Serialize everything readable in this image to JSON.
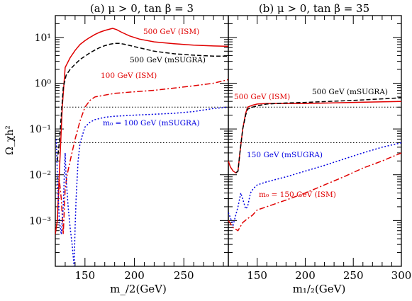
{
  "chart_data": [
    {
      "type": "line",
      "title": "(a) μ > 0, tan β = 3",
      "xlabel": "m_/2(GeV)",
      "ylabel": "Ω_χh²",
      "xlim": [
        120,
        295
      ],
      "ylim": [
        0.0001,
        30
      ],
      "yscale": "log",
      "xticks": [
        150,
        200,
        250
      ],
      "yticks": [
        "10⁻³",
        "10⁻²",
        "10⁻¹",
        "10⁰",
        "10¹"
      ],
      "reference_lines": [
        0.3,
        0.05
      ],
      "series": [
        {
          "name": "500 GeV (ISM)",
          "color": "#e00000",
          "style": "solid",
          "x": [
            120,
            122,
            124,
            127,
            130,
            135,
            140,
            145,
            150,
            155,
            160,
            165,
            170,
            175,
            178,
            182,
            187,
            195,
            205,
            220,
            240,
            260,
            280,
            295
          ],
          "y": [
            0.0005,
            0.001,
            0.01,
            0.3,
            2.2,
            3.6,
            5.2,
            7,
            8.5,
            10,
            11.6,
            13,
            14.2,
            15.2,
            15.8,
            14.8,
            13,
            10.8,
            9.2,
            8,
            7.3,
            6.8,
            6.5,
            6.4
          ]
        },
        {
          "name": "500 GeV (mSUGRA)",
          "color": "#000000",
          "style": "dashed",
          "x": [
            122,
            124,
            126,
            128,
            131,
            135,
            140,
            145,
            150,
            155,
            160,
            165,
            170,
            175,
            180,
            185,
            190,
            200,
            210,
            220,
            240,
            260,
            280,
            295
          ],
          "y": [
            0.02,
            0.05,
            0.2,
            0.8,
            1.5,
            2,
            2.6,
            3.3,
            3.9,
            4.6,
            5.3,
            6,
            6.6,
            7.1,
            7.4,
            7.4,
            7.1,
            6.3,
            5.6,
            5,
            4.4,
            4.1,
            3.9,
            3.9
          ]
        },
        {
          "name": "100 GeV (ISM)",
          "color": "#e00000",
          "style": "dashdot",
          "x": [
            122,
            124,
            126,
            127,
            128,
            129,
            130,
            132,
            135,
            140,
            145,
            150,
            155,
            160,
            170,
            180,
            200,
            220,
            240,
            260,
            280,
            295
          ],
          "y": [
            0.001,
            0.008,
            0.003,
            0.0012,
            0.0005,
            0.0015,
            0.005,
            0.01,
            0.02,
            0.06,
            0.15,
            0.3,
            0.42,
            0.5,
            0.55,
            0.6,
            0.65,
            0.7,
            0.78,
            0.88,
            1.0,
            1.2
          ]
        },
        {
          "name": "m₀ = 100 GeV (mSUGRA)",
          "color": "#0000e0",
          "style": "dotted",
          "x": [
            121,
            122,
            124,
            126,
            128,
            129,
            130,
            131,
            133,
            135,
            137,
            139,
            140,
            141,
            143,
            145,
            150,
            155,
            160,
            170,
            180,
            200,
            220,
            240,
            260,
            280,
            295
          ],
          "y": [
            0.06,
            0.01,
            0.001,
            0.0005,
            0.002,
            0.008,
            0.03,
            0.008,
            0.002,
            0.0007,
            0.0003,
            0.0001,
            0.0007,
            0.003,
            0.02,
            0.05,
            0.11,
            0.14,
            0.16,
            0.18,
            0.19,
            0.2,
            0.21,
            0.22,
            0.24,
            0.28,
            0.3
          ]
        }
      ]
    },
    {
      "type": "line",
      "title": "(b) μ > 0, tan β = 35",
      "xlabel": "m₁/₂(GeV)",
      "ylabel": "",
      "xlim": [
        120,
        300
      ],
      "ylim": [
        0.0001,
        30
      ],
      "yscale": "log",
      "xticks": [
        150,
        200,
        250,
        300
      ],
      "reference_lines": [
        0.3,
        0.05
      ],
      "series": [
        {
          "name": "500 GeV (ISM)",
          "color": "#e00000",
          "style": "solid",
          "x": [
            120,
            122,
            125,
            128,
            130,
            132,
            135,
            138,
            140,
            145,
            150,
            160,
            180,
            200,
            250,
            300
          ],
          "y": [
            0.02,
            0.015,
            0.012,
            0.011,
            0.012,
            0.03,
            0.1,
            0.22,
            0.3,
            0.33,
            0.35,
            0.36,
            0.36,
            0.36,
            0.38,
            0.4
          ]
        },
        {
          "name": "500 GeV (mSUGRA)",
          "color": "#000000",
          "style": "dashed",
          "x": [
            128,
            130,
            132,
            135,
            138,
            140,
            145,
            150,
            160,
            180,
            200,
            250,
            300
          ],
          "y": [
            0.011,
            0.012,
            0.03,
            0.1,
            0.2,
            0.27,
            0.3,
            0.32,
            0.35,
            0.37,
            0.38,
            0.42,
            0.48
          ]
        },
        {
          "name": "150 GeV (mSUGRA)",
          "color": "#0000e0",
          "style": "dotted",
          "x": [
            120,
            125,
            130,
            133,
            136,
            138,
            140,
            143,
            146,
            150,
            160,
            180,
            200,
            220,
            240,
            260,
            280,
            300
          ],
          "y": [
            0.0015,
            0.0008,
            0.002,
            0.004,
            0.0025,
            0.0018,
            0.002,
            0.004,
            0.005,
            0.006,
            0.007,
            0.009,
            0.012,
            0.016,
            0.022,
            0.03,
            0.04,
            0.05
          ]
        },
        {
          "name": "m₀ = 150 GeV (ISM)",
          "color": "#e00000",
          "style": "dashdot",
          "x": [
            120,
            125,
            130,
            135,
            140,
            145,
            150,
            160,
            180,
            200,
            220,
            240,
            260,
            280,
            300
          ],
          "y": [
            0.001,
            0.0007,
            0.0006,
            0.0009,
            0.0011,
            0.0013,
            0.0017,
            0.002,
            0.0028,
            0.004,
            0.006,
            0.009,
            0.014,
            0.02,
            0.03
          ]
        }
      ]
    }
  ],
  "labels": {
    "a_title": "(a) μ > 0, tan β = 3",
    "b_title": "(b) μ > 0, tan β = 35",
    "ylabel": "Ω_χh²",
    "a_xlabel": "m_/2(GeV)",
    "b_xlabel": "m₁/₂(GeV)",
    "a_500_ism": "500 GeV (ISM)",
    "a_500_msugra": "500 GeV (mSUGRA)",
    "a_100_ism": "100 GeV (ISM)",
    "a_100_msugra": "m₀ = 100 GeV (mSUGRA)",
    "b_500_ism": "500 GeV (ISM)",
    "b_500_msugra": "500 GeV (mSUGRA)",
    "b_150_msugra": "150 GeV (mSUGRA)",
    "b_150_ism": "m₀ = 150 GeV (ISM)"
  }
}
